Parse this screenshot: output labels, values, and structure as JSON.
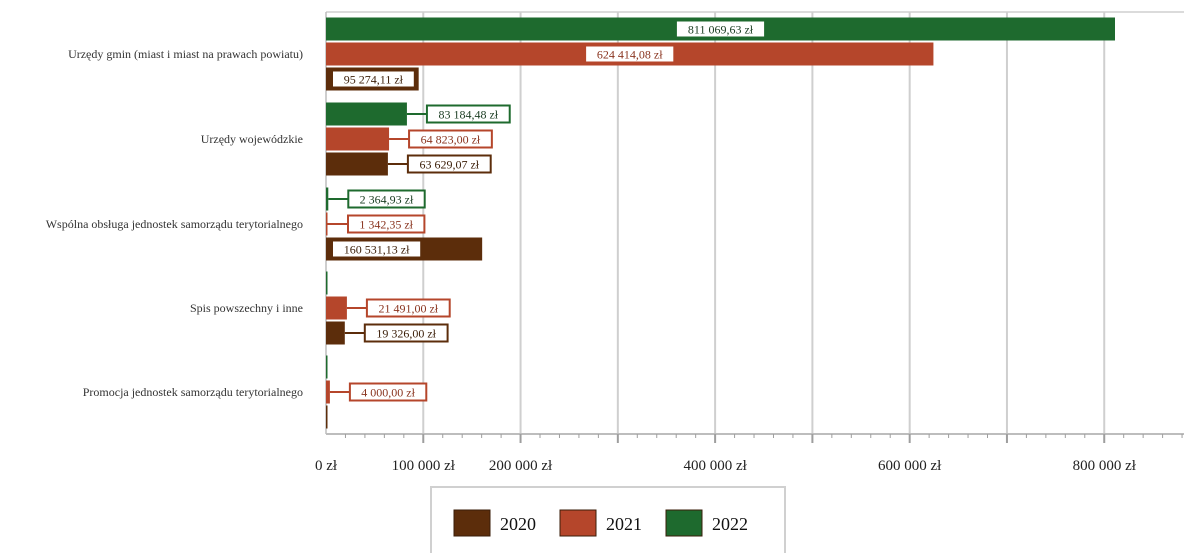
{
  "chart_data": {
    "type": "bar",
    "orientation": "horizontal",
    "title": "",
    "xlabel": "",
    "ylabel": "",
    "categories": [
      "Urzędy gmin (miast i miast na prawach powiatu)",
      "Urzędy wojewódzkie",
      "Wspólna obsługa jednostek samorządu terytorialnego",
      "Spis powszechny i inne",
      "Promocja jednostek samorządu terytorialnego"
    ],
    "series": [
      {
        "name": "2022",
        "color": "#1e6a2e",
        "values": [
          811069.63,
          83184.48,
          2364.93,
          0,
          0
        ],
        "labels": [
          "811 069,63 zł",
          "83 184,48 zł",
          "2 364,93 zł",
          "",
          ""
        ]
      },
      {
        "name": "2021",
        "color": "#b5462b",
        "values": [
          624414.08,
          64823.0,
          1342.35,
          21491.0,
          4000.0
        ],
        "labels": [
          "624 414,08 zł",
          "64 823,00 zł",
          "1 342,35 zł",
          "21 491,00 zł",
          "4 000,00 zł"
        ]
      },
      {
        "name": "2020",
        "color": "#5c2d0b",
        "values": [
          95274.11,
          63629.07,
          160531.13,
          19326.0,
          0
        ],
        "labels": [
          "95 274,11 zł",
          "63 629,07 zł",
          "160 531,13 zł",
          "19 326,00 zł",
          ""
        ]
      }
    ],
    "xlim": [
      0,
      880000
    ],
    "xticks": [
      0,
      100000,
      200000,
      400000,
      600000,
      800000
    ],
    "xtick_labels": [
      "0 zł",
      "100 000 zł",
      "200 000 zł",
      "400 000 zł",
      "600 000 zł",
      "800 000 zł"
    ],
    "grid": true,
    "legend": {
      "position": "bottom",
      "order": [
        "2020",
        "2021",
        "2022"
      ]
    }
  }
}
